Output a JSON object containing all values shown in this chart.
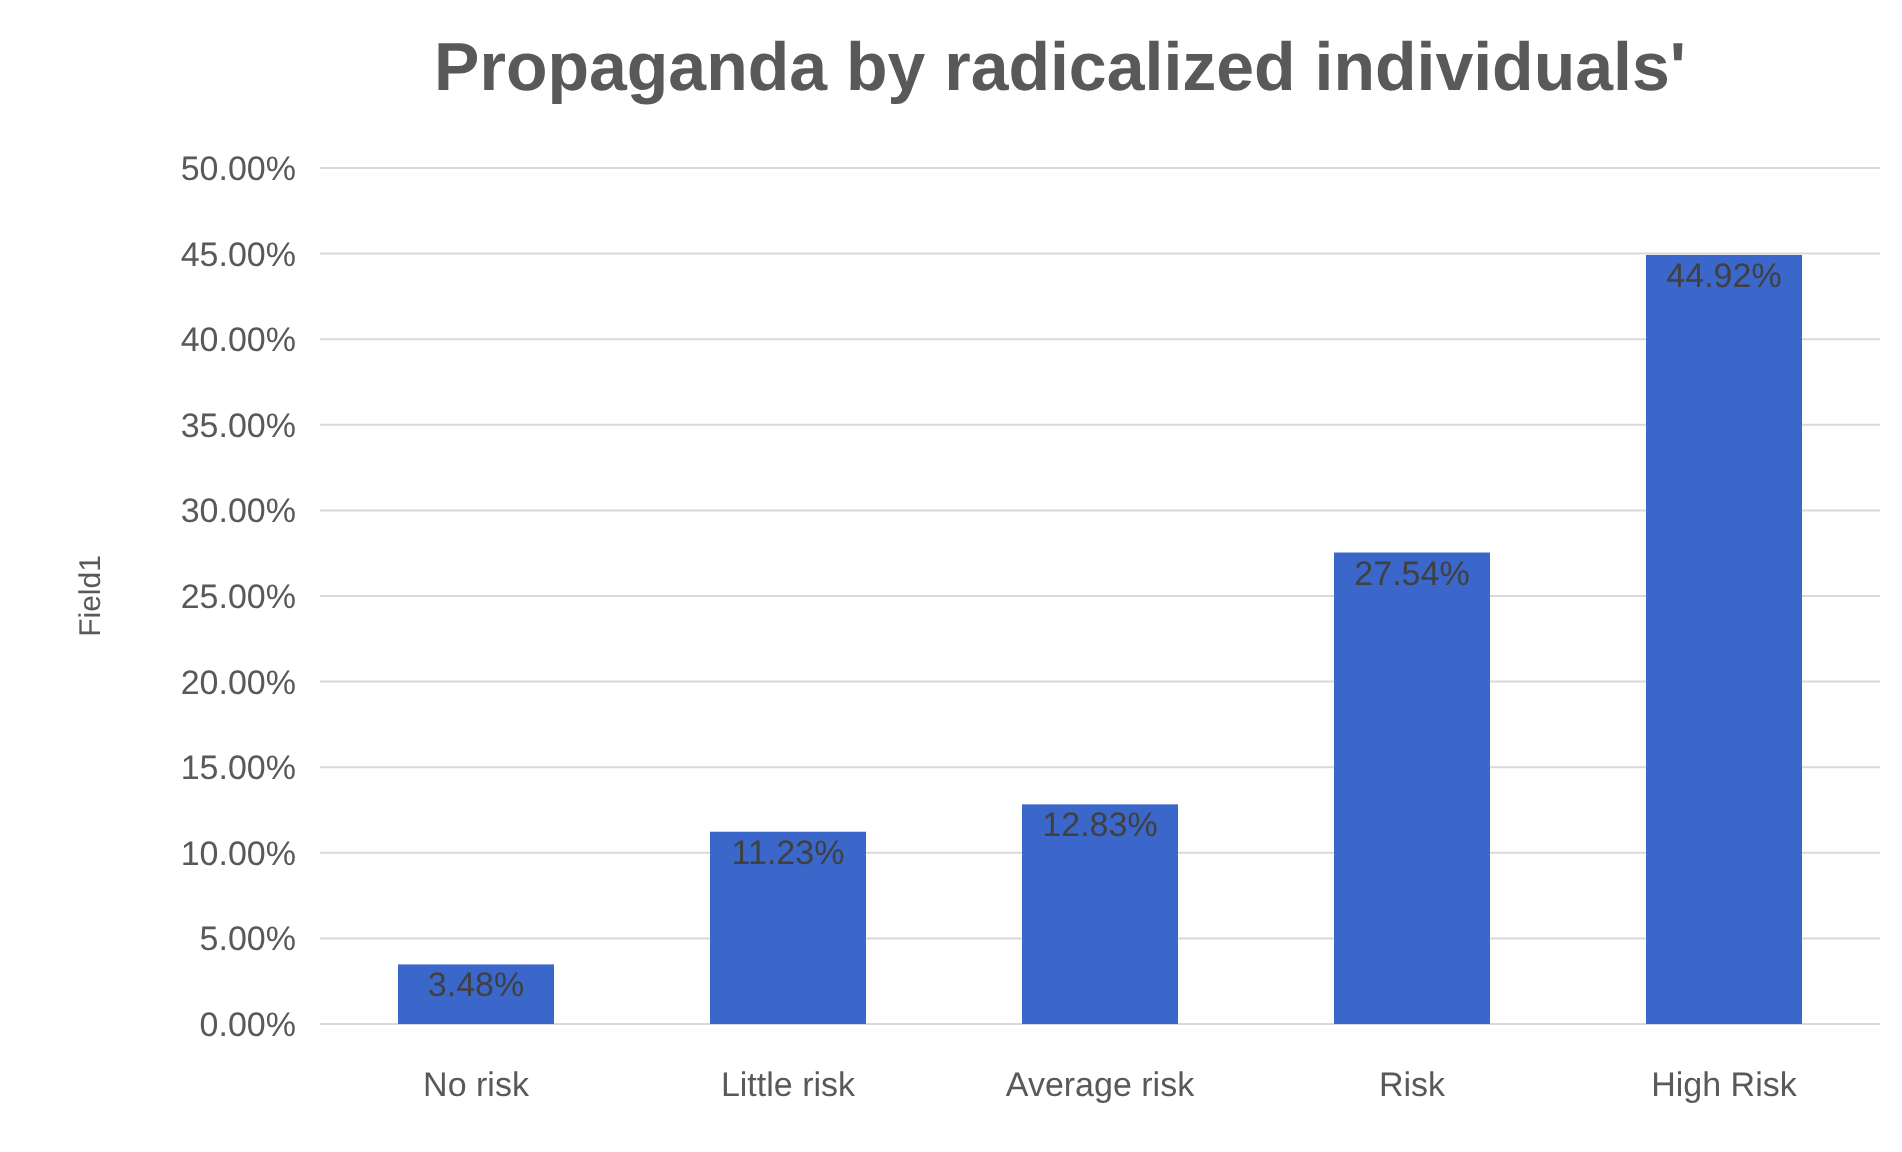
{
  "chart_data": {
    "type": "bar",
    "title": "Propaganda by radicalized individuals'",
    "ylabel": "Field1",
    "categories": [
      "No risk",
      "Little risk",
      "Average risk",
      "Risk",
      "High Risk"
    ],
    "values": [
      3.48,
      11.23,
      12.83,
      27.54,
      44.92
    ],
    "value_labels": [
      "3.48%",
      "11.23%",
      "12.83%",
      "27.54%",
      "44.92%"
    ],
    "color": "#3a67c9",
    "ylim": [
      0,
      50
    ],
    "yticks": [
      {
        "value": 0,
        "label": "0.00%"
      },
      {
        "value": 5,
        "label": "5.00%"
      },
      {
        "value": 10,
        "label": "10.00%"
      },
      {
        "value": 15,
        "label": "15.00%"
      },
      {
        "value": 20,
        "label": "20.00%"
      },
      {
        "value": 25,
        "label": "25.00%"
      },
      {
        "value": 30,
        "label": "30.00%"
      },
      {
        "value": 35,
        "label": "35.00%"
      },
      {
        "value": 40,
        "label": "40.00%"
      },
      {
        "value": 45,
        "label": "45.00%"
      },
      {
        "value": 50,
        "label": "50.00%"
      }
    ],
    "grid": "y"
  }
}
